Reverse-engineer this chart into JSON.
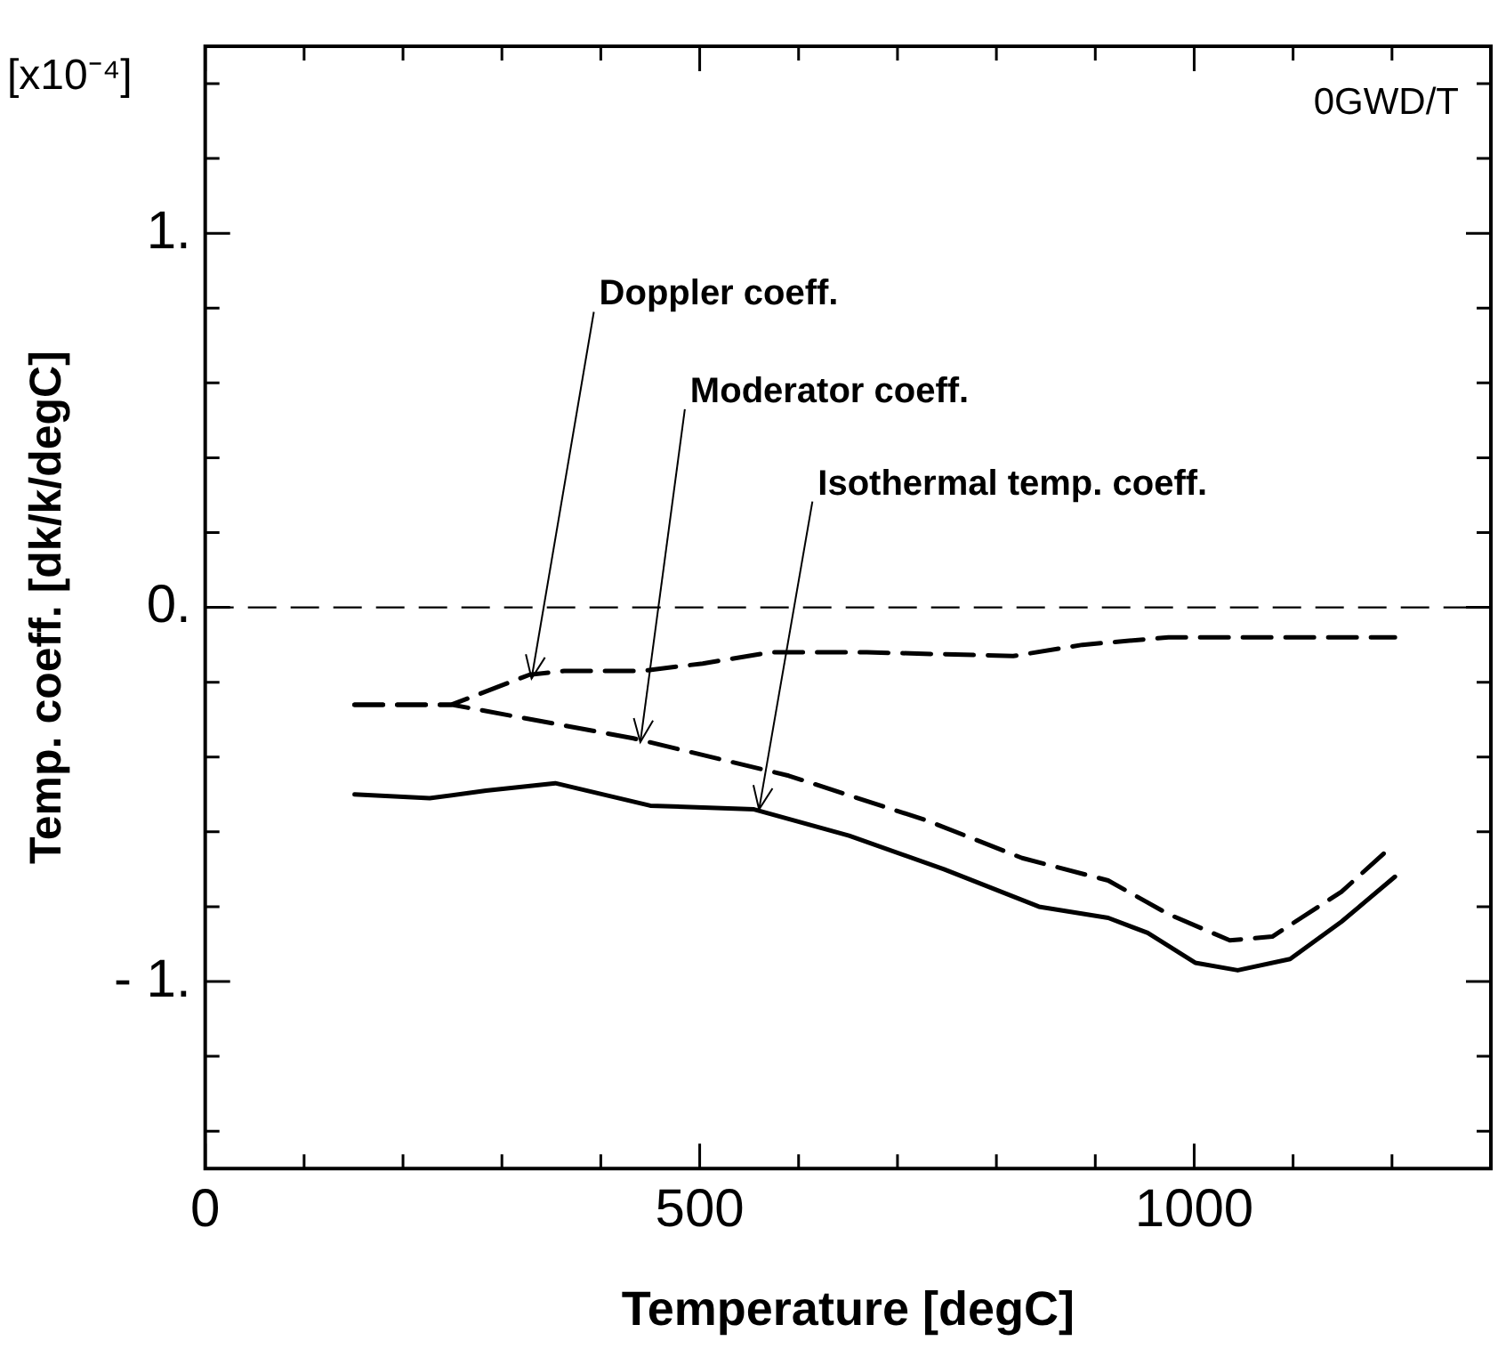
{
  "chart_data": {
    "type": "line",
    "xlabel": "Temperature [degC]",
    "ylabel": "Temp. coeff. [dk/k/degC]",
    "xlim": [
      0,
      1300
    ],
    "ylim": [
      -1.5,
      1.5
    ],
    "xticks": [
      0,
      {
        "value": 100,
        "label": null
      },
      {
        "value": 200,
        "label": null
      },
      {
        "value": 300,
        "label": null
      },
      {
        "value": 400,
        "label": null
      },
      500,
      {
        "value": 600,
        "label": null
      },
      {
        "value": 700,
        "label": null
      },
      {
        "value": 800,
        "label": null
      },
      {
        "value": 900,
        "label": null
      },
      1000,
      {
        "value": 1100,
        "label": null
      },
      {
        "value": 1200,
        "label": null
      }
    ],
    "yticks": [
      {
        "value": -1.4,
        "label": null
      },
      {
        "value": -1.2,
        "label": null
      },
      {
        "value": -1,
        "label": "- 1."
      },
      {
        "value": -0.8,
        "label": null
      },
      {
        "value": -0.6,
        "label": null
      },
      {
        "value": -0.4,
        "label": null
      },
      {
        "value": -0.2,
        "label": null
      },
      {
        "value": 0,
        "label": "0."
      },
      {
        "value": 0.2,
        "label": null
      },
      {
        "value": 0.4,
        "label": null
      },
      {
        "value": 0.6,
        "label": null
      },
      {
        "value": 0.8,
        "label": null
      },
      {
        "value": 1,
        "label": "1."
      },
      {
        "value": 1.2,
        "label": null
      },
      {
        "value": 1.4,
        "label": null
      }
    ],
    "grid": false,
    "legend": false,
    "marker": "none",
    "series": [
      {
        "color": "#000000",
        "line_style": "dashed",
        "x": [
          151,
          249,
          328,
          363,
          441,
          503,
          572,
          669,
          817,
          887,
          974,
          1203
        ],
        "values": [
          -0.26,
          -0.26,
          -0.18,
          -0.17,
          -0.17,
          -0.15,
          -0.12,
          -0.12,
          -0.13,
          -0.1,
          -0.08,
          -0.08
        ]
      },
      {
        "color": "#000000",
        "line_style": "dashed",
        "x": [
          151,
          249,
          433,
          590,
          730,
          826,
          913,
          974,
          1036,
          1079,
          1149,
          1195
        ],
        "values": [
          -0.26,
          -0.26,
          -0.35,
          -0.45,
          -0.57,
          -0.67,
          -0.73,
          -0.82,
          -0.89,
          -0.88,
          -0.76,
          -0.65
        ]
      },
      {
        "color": "#000000",
        "line_style": "solid",
        "x": [
          151,
          227,
          284,
          354,
          450,
          555,
          651,
          747,
          843,
          913,
          953,
          1001,
          1044,
          1097,
          1149,
          1203
        ],
        "values": [
          -0.5,
          -0.51,
          -0.49,
          -0.47,
          -0.53,
          -0.54,
          -0.61,
          -0.7,
          -0.8,
          -0.83,
          -0.87,
          -0.95,
          -0.97,
          -0.94,
          -0.84,
          -0.72
        ]
      }
    ],
    "ref_lines": [
      {
        "axis": "y",
        "value": 0,
        "line_style": "dashed",
        "color": "#000000"
      }
    ],
    "annotations": [
      "[x10⁻⁴]",
      "0GWD/T",
      {
        "text": "Doppler coeff.",
        "x": 330,
        "y": -0.19
      },
      {
        "text": "Moderator coeff.",
        "x": 440,
        "y": -0.36
      },
      {
        "text": "Isothermal temp. coeff.",
        "x": 560,
        "y": -0.54
      }
    ]
  }
}
